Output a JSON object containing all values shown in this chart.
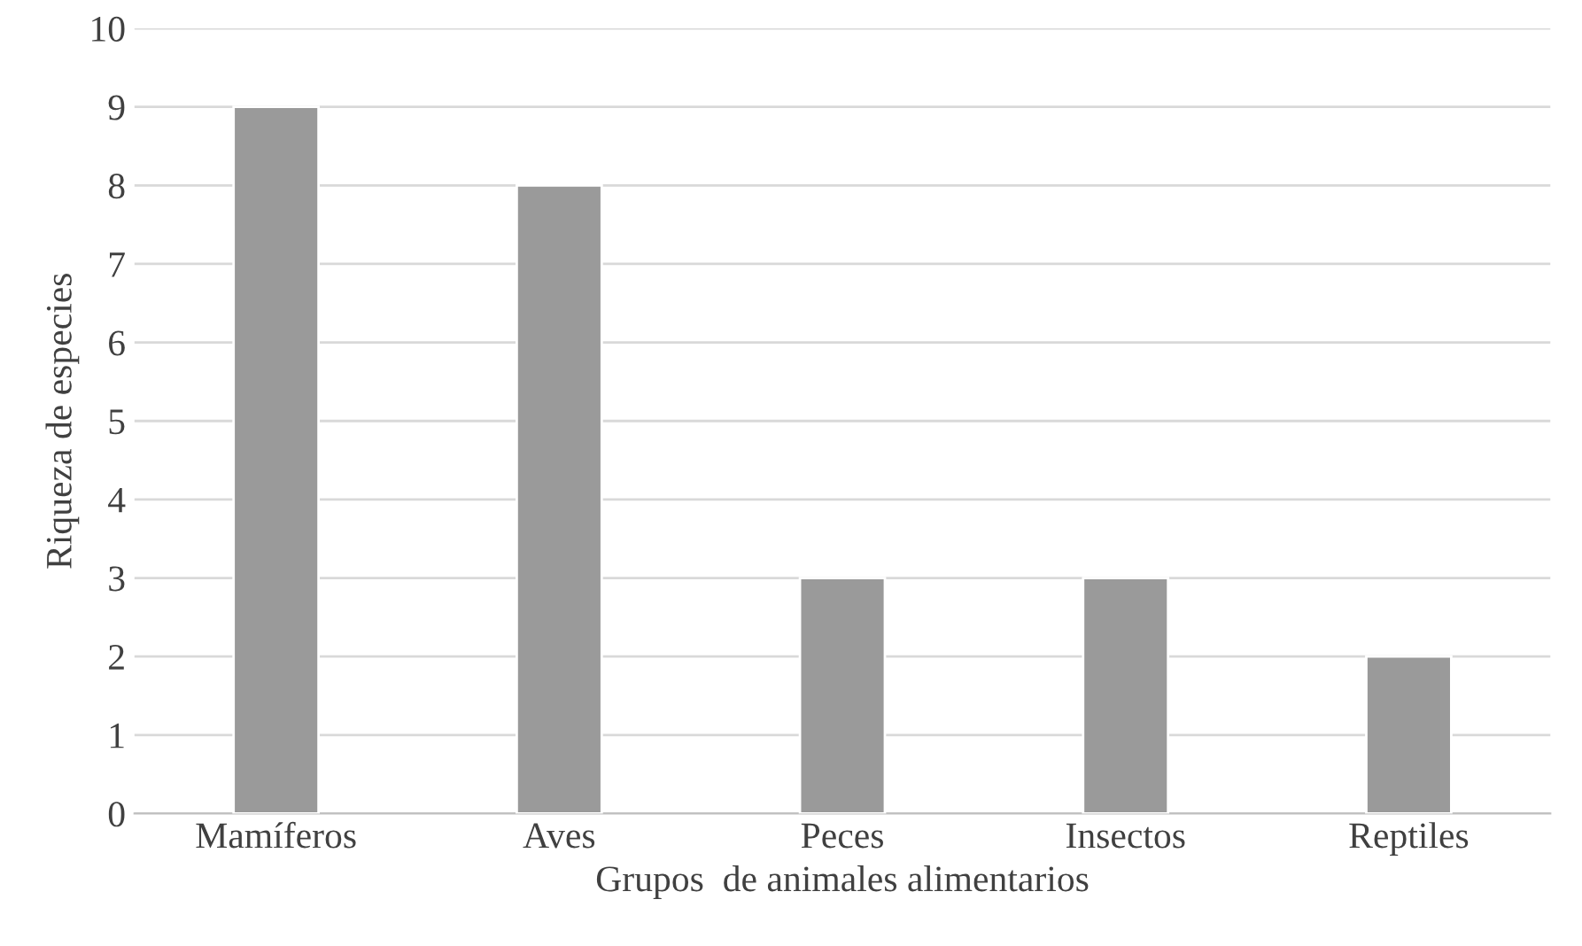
{
  "chart_data": {
    "type": "bar",
    "xlabel": "Grupos  de animales alimentarios",
    "ylabel": "Riqueza de especies",
    "categories": [
      "Mamíferos",
      "Aves",
      "Peces",
      "Insectos",
      "Reptiles"
    ],
    "values": [
      9,
      8,
      3,
      3,
      2
    ],
    "color": "#9a9a9a",
    "ylim": [
      0,
      10
    ],
    "yticks": [
      0,
      1,
      2,
      3,
      4,
      5,
      6,
      7,
      8,
      9,
      10
    ],
    "grid": "y"
  }
}
